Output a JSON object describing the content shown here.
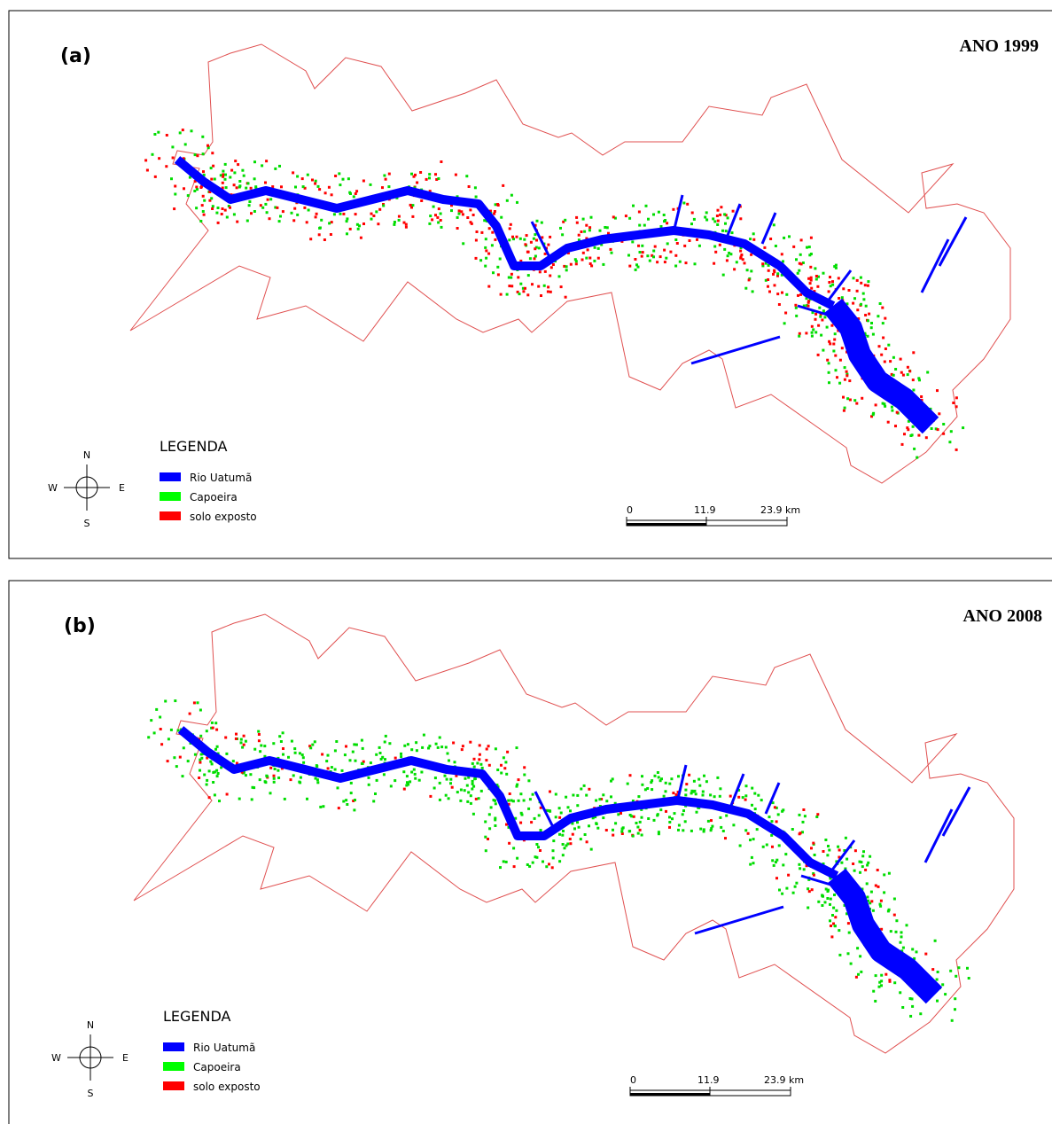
{
  "panels": [
    {
      "label": "(a)",
      "title": "ANO 1999",
      "legend": {
        "title": "LEGENDA",
        "items": [
          "Rio Uatumã",
          "Capoeira",
          "solo exposto"
        ]
      },
      "compass": {
        "n": "N",
        "s": "S",
        "w": "W",
        "e": "E"
      },
      "scale": [
        "0",
        "11.9",
        "23.9 km"
      ]
    },
    {
      "label": "(b)",
      "title": "ANO 2008",
      "legend": {
        "title": "LEGENDA",
        "items": [
          "Rio Uatumã",
          "Capoeira",
          "solo exposto"
        ]
      },
      "compass": {
        "n": "N",
        "s": "S",
        "w": "W",
        "e": "E"
      },
      "scale": [
        "0",
        "11.9",
        "23.9 km"
      ]
    }
  ]
}
